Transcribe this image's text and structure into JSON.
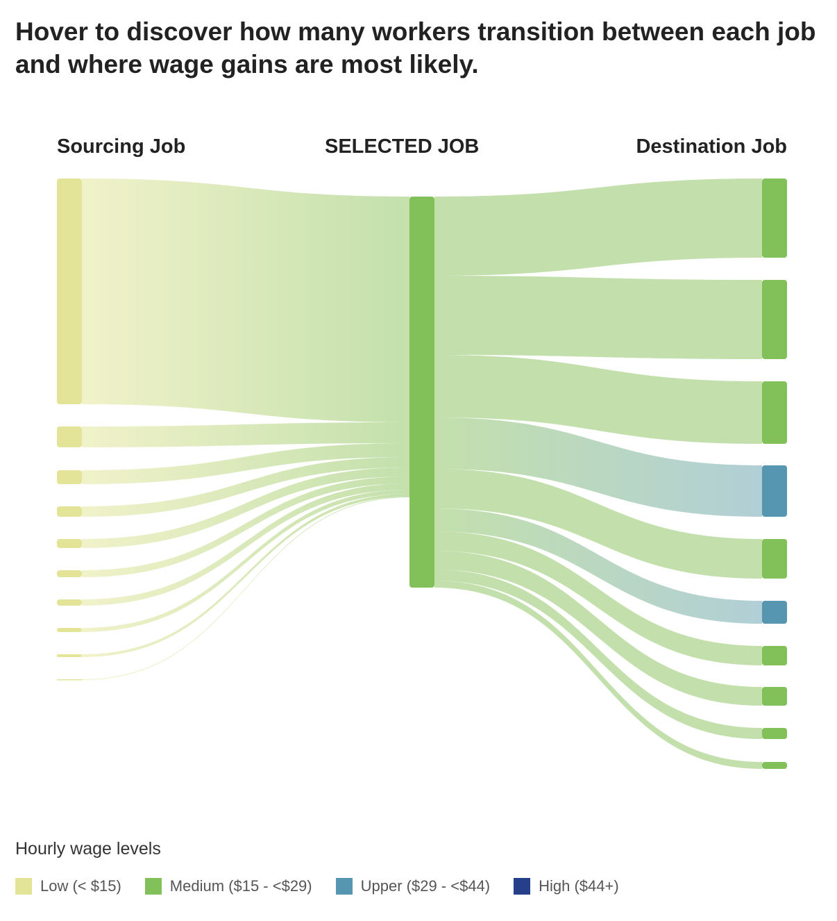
{
  "headline": "Hover to discover how many workers transition between each job and where wage gains are most likely.",
  "columns": {
    "left": "Sourcing Job",
    "middle": "SELECTED JOB",
    "right": "Destination Job"
  },
  "colors": {
    "low": "#e3e497",
    "medium": "#82c05a",
    "upper": "#5696b0",
    "high": "#253f8a",
    "link_low_light": "#f1f2c9",
    "link_medium_light": "#c3e0ac",
    "link_upper_light": "#b1cfd6"
  },
  "legend": {
    "title": "Hourly wage levels",
    "items": [
      {
        "key": "low",
        "label": "Low (< $15)",
        "color": "#e3e497"
      },
      {
        "key": "medium",
        "label": "Medium ($15 - <$29)",
        "color": "#82c05a"
      },
      {
        "key": "upper",
        "label": "Upper ($29 - <$44)",
        "color": "#5696b0"
      },
      {
        "key": "high",
        "label": "High ($44+)",
        "color": "#253f8a"
      }
    ]
  },
  "chart_data": {
    "type": "sankey",
    "selected": {
      "level": "medium"
    },
    "sources": [
      {
        "level": "low",
        "value": 325
      },
      {
        "level": "low",
        "value": 30
      },
      {
        "level": "low",
        "value": 20
      },
      {
        "level": "low",
        "value": 15
      },
      {
        "level": "low",
        "value": 13
      },
      {
        "level": "low",
        "value": 10
      },
      {
        "level": "low",
        "value": 9
      },
      {
        "level": "low",
        "value": 6
      },
      {
        "level": "low",
        "value": 4
      },
      {
        "level": "low",
        "value": 1
      }
    ],
    "destinations": [
      {
        "level": "medium",
        "value": 114
      },
      {
        "level": "medium",
        "value": 114
      },
      {
        "level": "medium",
        "value": 90
      },
      {
        "level": "upper",
        "value": 74
      },
      {
        "level": "medium",
        "value": 57
      },
      {
        "level": "upper",
        "value": 33
      },
      {
        "level": "medium",
        "value": 28
      },
      {
        "level": "medium",
        "value": 27
      },
      {
        "level": "medium",
        "value": 16
      },
      {
        "level": "medium",
        "value": 10
      }
    ]
  }
}
